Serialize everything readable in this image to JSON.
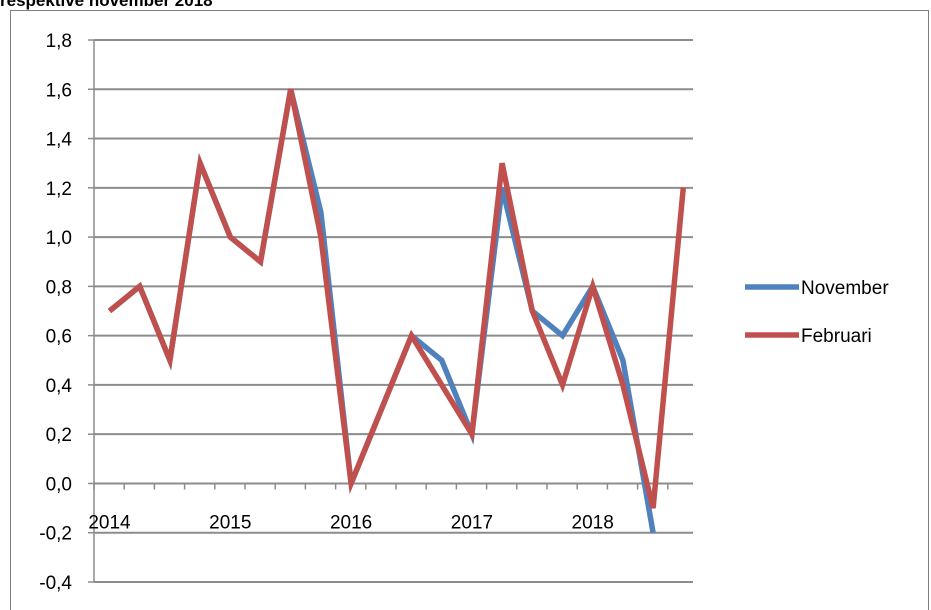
{
  "caption": "respektive november 2018",
  "chart_data": {
    "type": "line",
    "ylim": [
      -0.4,
      1.8
    ],
    "yticks": [
      "1,8",
      "1,6",
      "1,4",
      "1,2",
      "1,0",
      "0,8",
      "0,6",
      "0,4",
      "0,2",
      "0,0",
      "-0,2",
      "-0,4"
    ],
    "ytick_values": [
      1.8,
      1.6,
      1.4,
      1.2,
      1.0,
      0.8,
      0.6,
      0.4,
      0.2,
      0.0,
      -0.2,
      -0.4
    ],
    "x_tick_labels": [
      {
        "label": "2014",
        "index": 0
      },
      {
        "label": "2015",
        "index": 4
      },
      {
        "label": "2016",
        "index": 8
      },
      {
        "label": "2017",
        "index": 12
      },
      {
        "label": "2018",
        "index": 16
      }
    ],
    "grid": true,
    "legend_position": "right",
    "series": [
      {
        "name": "November",
        "color": "#4f81bd",
        "values": [
          0.7,
          0.8,
          0.5,
          1.3,
          1.0,
          0.9,
          1.6,
          1.1,
          0.0,
          0.3,
          0.6,
          0.5,
          0.2,
          1.2,
          0.7,
          0.6,
          0.8,
          0.5,
          -0.2,
          null
        ]
      },
      {
        "name": "Februari",
        "color": "#c0504d",
        "values": [
          0.7,
          0.8,
          0.5,
          1.3,
          1.0,
          0.9,
          1.6,
          1.0,
          0.0,
          0.3,
          0.6,
          0.4,
          0.2,
          1.3,
          0.7,
          0.4,
          0.8,
          0.4,
          -0.1,
          1.2
        ]
      }
    ]
  }
}
